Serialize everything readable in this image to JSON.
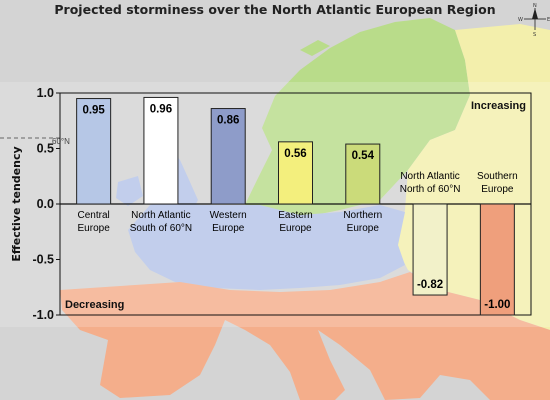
{
  "chart_data": {
    "type": "bar",
    "title": "Projected storminess over the North Atlantic European Region",
    "ylabel": "Effective tendency",
    "ylim": [
      -1.0,
      1.0
    ],
    "yticks": [
      "1.0",
      "0.5",
      "0.0",
      "-0.5",
      "-1.0"
    ],
    "categories": [
      [
        "Central",
        "Europe"
      ],
      [
        "North Atlantic",
        "South of 60°N"
      ],
      [
        "Western",
        "Europe"
      ],
      [
        "Eastern",
        "Europe"
      ],
      [
        "Northern",
        "Europe"
      ],
      [
        "North Atlantic",
        "North of 60°N"
      ],
      [
        "Southern",
        "Europe"
      ]
    ],
    "values": [
      0.95,
      0.96,
      0.86,
      0.56,
      0.54,
      -0.82,
      -1.0
    ],
    "value_labels": [
      "0.95",
      "0.96",
      "0.86",
      "0.56",
      "0.54",
      "-0.82",
      "-1.00"
    ],
    "bar_colors": [
      "#b6c7e6",
      "#ffffff",
      "#8e9cc9",
      "#f3ef7d",
      "#cbdb7a",
      "#f2f1c9",
      "#ef9f7c"
    ],
    "increasing_label": "Increasing",
    "decreasing_label": "Decreasing",
    "latitude_label": "60°N",
    "grid": false
  },
  "map_colors": {
    "sea": "#d4d4d4",
    "north": "#b9dc8a",
    "east": "#f3efac",
    "central": "#b5c4e8",
    "south": "#f4ae8b"
  },
  "compass": {
    "n": "N",
    "s": "S",
    "e": "E",
    "w": "W"
  }
}
